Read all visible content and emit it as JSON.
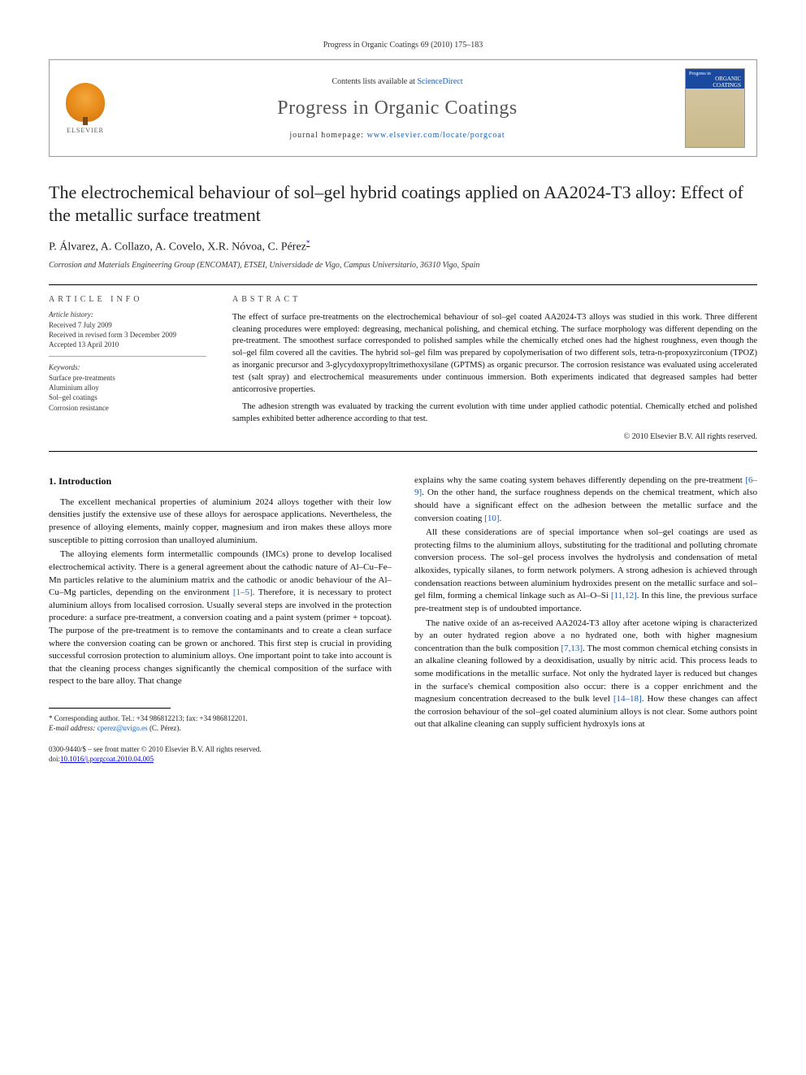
{
  "header_ref": "Progress in Organic Coatings 69 (2010) 175–183",
  "journal_box": {
    "contents_prefix": "Contents lists available at ",
    "contents_link": "ScienceDirect",
    "journal_title": "Progress in Organic Coatings",
    "homepage_prefix": "journal homepage: ",
    "homepage_link": "www.elsevier.com/locate/porgcoat",
    "elsevier_label": "ELSEVIER",
    "cover_top": "Progress in",
    "cover_title": "ORGANIC COATINGS"
  },
  "title": "The electrochemical behaviour of sol–gel hybrid coatings applied on AA2024-T3 alloy: Effect of the metallic surface treatment",
  "authors": "P. Álvarez, A. Collazo, A. Covelo, X.R. Nóvoa, C. Pérez",
  "author_sup": "*",
  "affiliation": "Corrosion and Materials Engineering Group (ENCOMAT), ETSEI, Universidade de Vigo, Campus Universitario, 36310 Vigo, Spain",
  "info": {
    "heading": "ARTICLE INFO",
    "history_label": "Article history:",
    "history": [
      "Received 7 July 2009",
      "Received in revised form 3 December 2009",
      "Accepted 13 April 2010"
    ],
    "keywords_label": "Keywords:",
    "keywords": [
      "Surface pre-treatments",
      "Aluminium alloy",
      "Sol–gel coatings",
      "Corrosion resistance"
    ]
  },
  "abstract": {
    "heading": "ABSTRACT",
    "p1": "The effect of surface pre-treatments on the electrochemical behaviour of sol–gel coated AA2024-T3 alloys was studied in this work. Three different cleaning procedures were employed: degreasing, mechanical polishing, and chemical etching. The surface morphology was different depending on the pre-treatment. The smoothest surface corresponded to polished samples while the chemically etched ones had the highest roughness, even though the sol–gel film covered all the cavities. The hybrid sol–gel film was prepared by copolymerisation of two different sols, tetra-n-propoxyzirconium (TPOZ) as inorganic precursor and 3-glycydoxypropyltrimethoxysilane (GPTMS) as organic precursor. The corrosion resistance was evaluated using accelerated test (salt spray) and electrochemical measurements under continuous immersion. Both experiments indicated that degreased samples had better anticorrosive properties.",
    "p2": "The adhesion strength was evaluated by tracking the current evolution with time under applied cathodic potential. Chemically etched and polished samples exhibited better adherence according to that test.",
    "copyright": "© 2010 Elsevier B.V. All rights reserved."
  },
  "body": {
    "section_heading": "1. Introduction",
    "left": {
      "p1": "The excellent mechanical properties of aluminium 2024 alloys together with their low densities justify the extensive use of these alloys for aerospace applications. Nevertheless, the presence of alloying elements, mainly copper, magnesium and iron makes these alloys more susceptible to pitting corrosion than unalloyed aluminium.",
      "p2_a": "The alloying elements form intermetallic compounds (IMCs) prone to develop localised electrochemical activity. There is a general agreement about the cathodic nature of Al–Cu–Fe–Mn particles relative to the aluminium matrix and the cathodic or anodic behaviour of the Al–Cu–Mg particles, depending on the environment ",
      "ref1": "[1–5]",
      "p2_b": ". Therefore, it is necessary to protect aluminium alloys from localised corrosion. Usually several steps are involved in the protection procedure: a surface pre-treatment, a conversion coating and a paint system (primer + topcoat). The purpose of the pre-treatment is to remove the contaminants and to create a clean surface where the conversion coating can be grown or anchored. This first step is crucial in providing successful corrosion protection to aluminium alloys. One important point to take into account is that the cleaning process changes significantly the chemical composition of the surface with respect to the bare alloy. That change"
    },
    "right": {
      "p1_a": "explains why the same coating system behaves differently depending on the pre-treatment ",
      "ref2": "[6–9]",
      "p1_b": ". On the other hand, the surface roughness depends on the chemical treatment, which also should have a significant effect on the adhesion between the metallic surface and the conversion coating ",
      "ref3": "[10]",
      "p1_c": ".",
      "p2_a": "All these considerations are of special importance when sol–gel coatings are used as protecting films to the aluminium alloys, substituting for the traditional and polluting chromate conversion process. The sol–gel process involves the hydrolysis and condensation of metal alkoxides, typically silanes, to form network polymers. A strong adhesion is achieved through condensation reactions between aluminium hydroxides present on the metallic surface and sol–gel film, forming a chemical linkage such as Al–O–Si ",
      "ref4": "[11,12]",
      "p2_b": ". In this line, the previous surface pre-treatment step is of undoubted importance.",
      "p3_a": "The native oxide of an as-received AA2024-T3 alloy after acetone wiping is characterized by an outer hydrated region above a no hydrated one, both with higher magnesium concentration than the bulk composition ",
      "ref5": "[7,13]",
      "p3_b": ". The most common chemical etching consists in an alkaline cleaning followed by a deoxidisation, usually by nitric acid. This process leads to some modifications in the metallic surface. Not only the hydrated layer is reduced but changes in the surface's chemical composition also occur: there is a copper enrichment and the magnesium concentration decreased to the bulk level ",
      "ref6": "[14–18]",
      "p3_c": ". How these changes can affect the corrosion behaviour of the sol–gel coated aluminium alloys is not clear. Some authors point out that alkaline cleaning can supply sufficient hydroxyls ions at"
    }
  },
  "footnote": {
    "corresponding": "* Corresponding author. Tel.: +34 986812213; fax: +34 986812201.",
    "email_label": "E-mail address: ",
    "email": "cperez@uvigo.es",
    "email_suffix": " (C. Pérez)."
  },
  "doi": {
    "line1": "0300-9440/$ – see front matter © 2010 Elsevier B.V. All rights reserved.",
    "line2_prefix": "doi:",
    "line2": "10.1016/j.porgcoat.2010.04.005"
  }
}
